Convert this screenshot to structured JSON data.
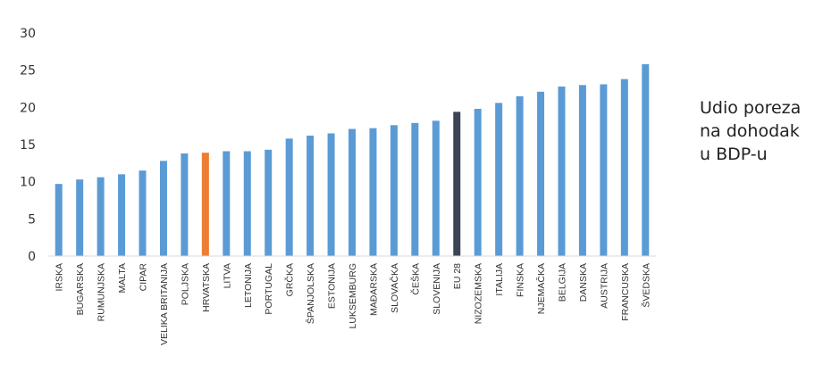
{
  "chart_data": {
    "type": "bar",
    "categories": [
      "IRSKA",
      "BUGARSKA",
      "RUMUNJSKA",
      "MALTA",
      "CIPAR",
      "VELIKA BRITANIJA",
      "POLJSKA",
      "HRVATSKA",
      "LITVA",
      "LETONIJA",
      "PORTUGAL",
      "GRČKA",
      "ŠPANJOLSKA",
      "ESTONIJA",
      "LUKSEMBURG",
      "MAĐARSKA",
      "SLOVAČKA",
      "ČEŠKA",
      "SLOVENIJA",
      "EU 28",
      "NIZOZEMSKA",
      "ITALIJA",
      "FINSKA",
      "NJEMAČKA",
      "BELGIJA",
      "DANSKA",
      "AUSTRIJA",
      "FRANCUSKA",
      "ŠVEDSKA"
    ],
    "values": [
      9.7,
      10.3,
      10.6,
      11.0,
      11.5,
      12.8,
      13.8,
      13.9,
      14.1,
      14.1,
      14.3,
      15.8,
      16.2,
      16.5,
      17.1,
      17.2,
      17.6,
      17.9,
      18.2,
      19.4,
      19.8,
      20.6,
      21.5,
      22.1,
      22.8,
      23.0,
      23.1,
      23.8,
      25.8
    ],
    "yticks": [
      "0",
      "5",
      "10",
      "15",
      "20",
      "25",
      "30"
    ],
    "ylim": [
      0,
      30
    ],
    "grid": false,
    "legend": "none",
    "colors": {
      "default": "#5b9bd5",
      "HRVATSKA": "#ed7d31",
      "EU 28": "#3b4556",
      "text": "#333333"
    },
    "side_label": [
      "Udio poreza",
      "na dohodak",
      "u BDP-u"
    ]
  }
}
